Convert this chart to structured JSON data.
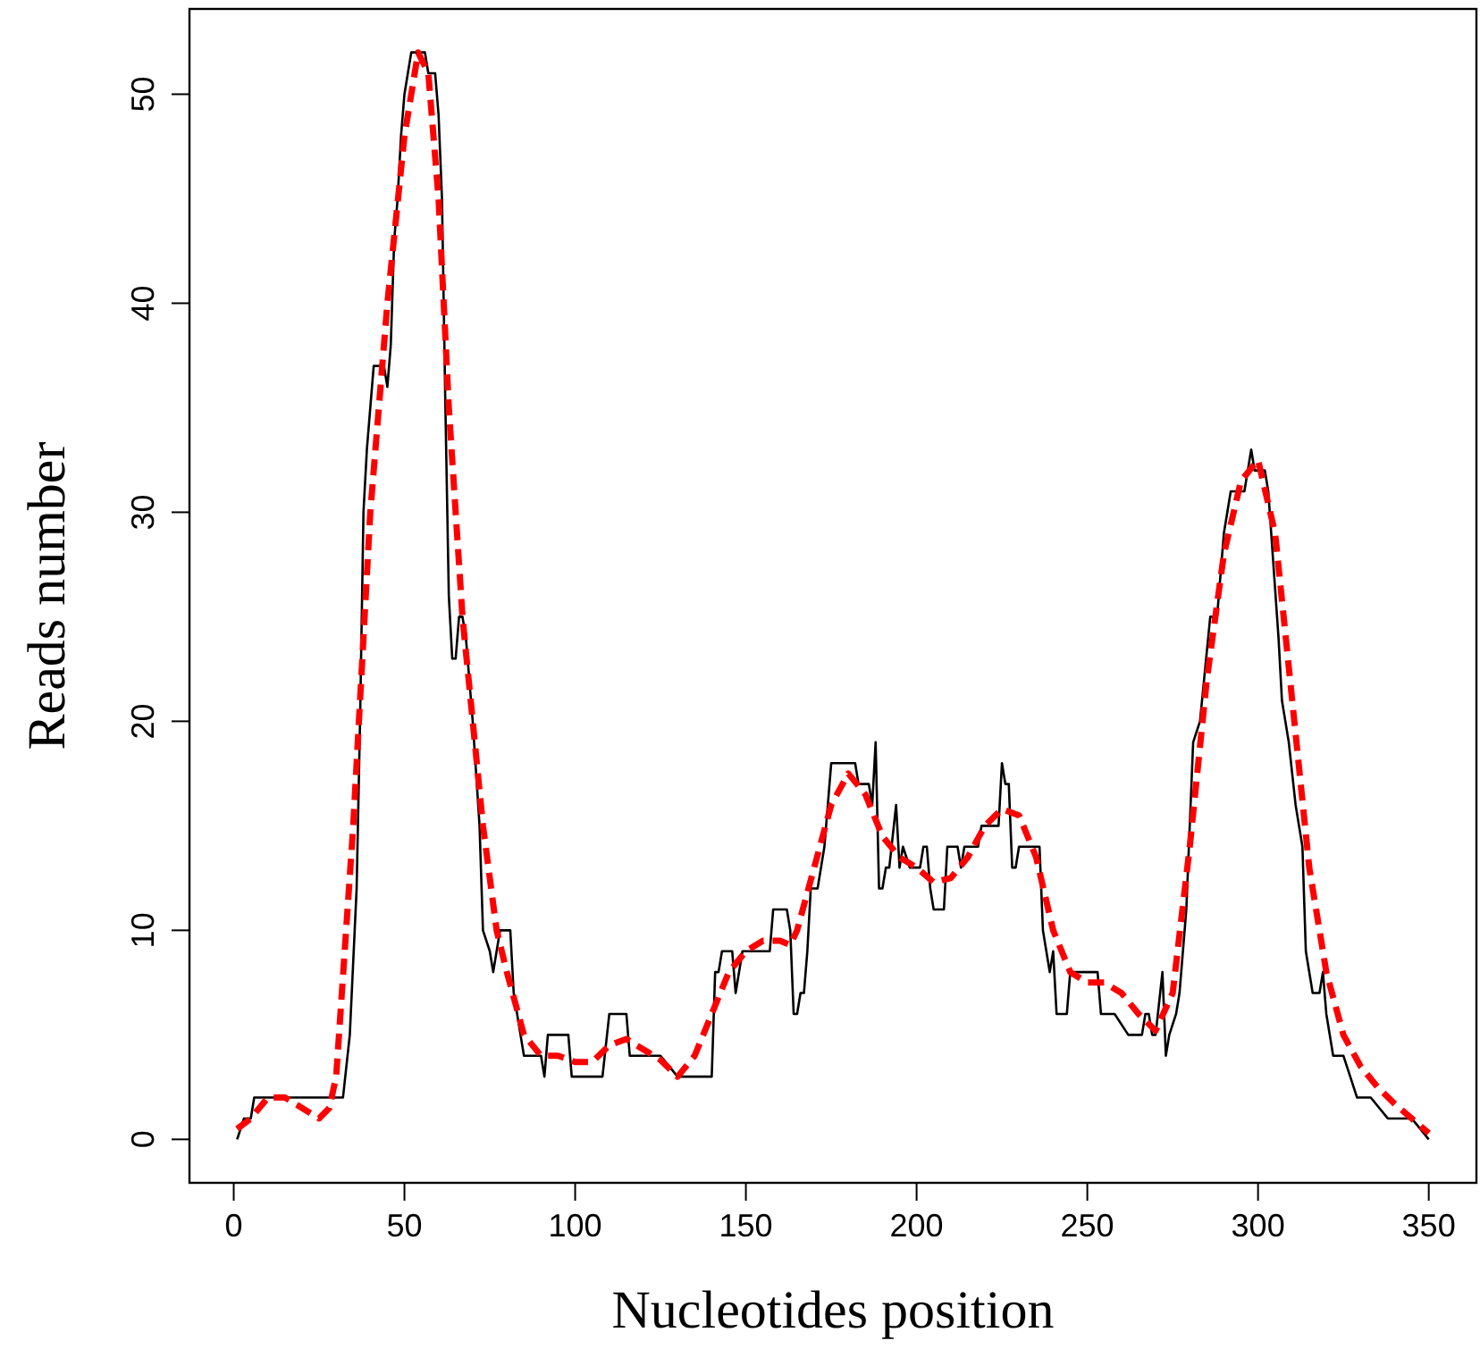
{
  "chart_data": {
    "type": "line",
    "xlabel": "Nucleotides position",
    "ylabel": "Reads number",
    "xlim": [
      -12.96,
      363.96
    ],
    "ylim": [
      -2.08,
      54.08
    ],
    "xticks": [
      0,
      50,
      100,
      150,
      200,
      250,
      300,
      350
    ],
    "yticks": [
      0,
      10,
      20,
      30,
      40,
      50
    ],
    "grid": false,
    "series": [
      {
        "color": "#000000",
        "line_style": "solid",
        "x": [
          1,
          3,
          5,
          6,
          10,
          20,
          30,
          32,
          34,
          36,
          37,
          38,
          39,
          40,
          41,
          44,
          45,
          46,
          47,
          48,
          49,
          50,
          51,
          52,
          55,
          56,
          57,
          59,
          60,
          61,
          62,
          63,
          64,
          65,
          66,
          67,
          68,
          70,
          72,
          73,
          75,
          76,
          77,
          78,
          81,
          82,
          84,
          85,
          90,
          91,
          92,
          98,
          99,
          108,
          110,
          115,
          116,
          125,
          130,
          140,
          141,
          142,
          143,
          146,
          147,
          149,
          150,
          157,
          158,
          162,
          163,
          164,
          165,
          166,
          167,
          168,
          169,
          171,
          173,
          174,
          175,
          182,
          183,
          186,
          187,
          188,
          189,
          190,
          191,
          192,
          194,
          195,
          196,
          198,
          201,
          202,
          203,
          204,
          205,
          208,
          209,
          212,
          213,
          214,
          218,
          219,
          224,
          225,
          226,
          227,
          228,
          229,
          230,
          236,
          237,
          238,
          239,
          240,
          241,
          244,
          245,
          253,
          254,
          258,
          262,
          266,
          267,
          268,
          269,
          270,
          272,
          273,
          274,
          276,
          277,
          279,
          281,
          283,
          286,
          288,
          290,
          292,
          296,
          297,
          298,
          299,
          302,
          303,
          306,
          307,
          309,
          311,
          313,
          314,
          316,
          318,
          319,
          320,
          322,
          325,
          327,
          329,
          333,
          338,
          343,
          345,
          350
        ],
        "values": [
          0,
          1,
          1,
          2,
          2,
          2,
          2,
          2,
          5,
          12,
          20,
          30,
          33,
          35,
          37,
          37,
          36,
          38,
          43,
          45,
          48,
          50,
          51,
          52,
          52,
          52,
          51,
          51,
          49,
          45,
          35,
          26,
          23,
          23,
          25,
          25,
          24,
          20,
          15,
          10,
          9,
          8,
          9,
          10,
          10,
          7,
          5,
          4,
          4,
          3,
          5,
          5,
          3,
          3,
          6,
          6,
          4,
          4,
          3,
          3,
          8,
          8,
          9,
          9,
          7,
          9,
          9,
          9,
          11,
          11,
          10,
          6,
          6,
          7,
          7,
          9,
          12,
          12,
          14,
          16,
          18,
          18,
          17,
          17,
          16,
          19,
          12,
          12,
          13,
          13,
          16,
          13,
          14,
          13,
          13,
          14,
          14,
          12,
          11,
          11,
          14,
          14,
          13,
          14,
          14,
          15,
          15,
          18,
          17,
          17,
          13,
          13,
          14,
          14,
          10,
          9,
          8,
          9,
          6,
          6,
          8,
          8,
          6,
          6,
          5,
          5,
          6,
          6,
          5,
          5,
          8,
          4,
          5,
          6,
          7,
          11,
          19,
          20,
          25,
          25,
          29,
          31,
          31,
          32,
          33,
          32,
          32,
          31,
          24,
          21,
          19,
          16,
          14,
          9,
          7,
          7,
          8,
          6,
          4,
          4,
          3,
          2,
          2,
          1,
          1,
          1,
          0
        ]
      },
      {
        "color": "#ff0000",
        "line_style": "dashed",
        "x": [
          1,
          5,
          10,
          15,
          20,
          25,
          28,
          30,
          35,
          40,
          45,
          50,
          54,
          57,
          60,
          63,
          67,
          70,
          73,
          77,
          80,
          85,
          90,
          95,
          100,
          105,
          110,
          115,
          120,
          125,
          130,
          135,
          140,
          145,
          150,
          155,
          160,
          163,
          165,
          170,
          175,
          180,
          185,
          190,
          195,
          200,
          205,
          210,
          215,
          220,
          225,
          230,
          235,
          240,
          245,
          250,
          255,
          260,
          265,
          270,
          275,
          280,
          285,
          290,
          295,
          300,
          305,
          310,
          315,
          320,
          325,
          330,
          335,
          340,
          345,
          350
        ],
        "values": [
          0.5,
          1,
          2,
          2,
          1.5,
          1,
          1.5,
          3,
          15,
          30,
          40,
          48,
          52,
          51,
          45,
          35,
          25,
          20,
          15,
          10,
          8,
          5,
          4,
          4,
          3.7,
          3.7,
          4.5,
          4.8,
          4.3,
          3.8,
          3,
          4,
          6,
          8,
          9,
          9.5,
          9.5,
          9.3,
          10,
          13,
          16,
          17.5,
          16.5,
          14.5,
          13.5,
          13,
          12.3,
          12.5,
          13.5,
          15,
          15.8,
          15.5,
          13.5,
          10,
          8,
          7.5,
          7.5,
          7,
          6,
          5.2,
          7,
          14,
          22,
          28,
          31.5,
          32.5,
          29,
          21,
          13,
          8,
          5,
          3.5,
          2.5,
          1.7,
          1,
          0.3
        ]
      }
    ]
  }
}
